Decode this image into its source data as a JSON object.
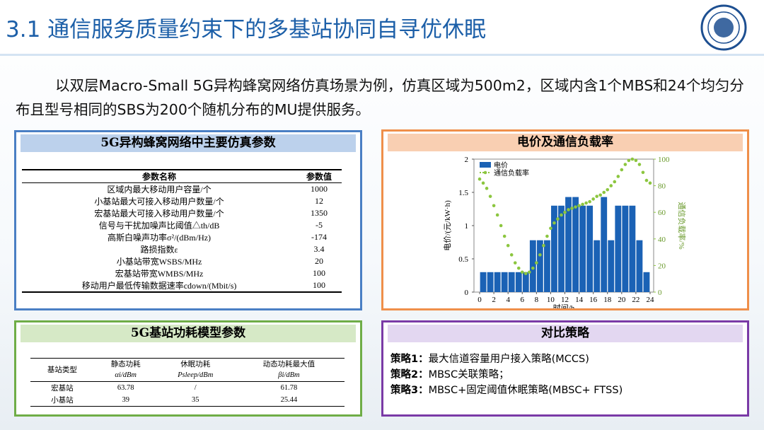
{
  "header": {
    "title": "3.1 通信服务质量约束下的多基站协同自寻优休眠"
  },
  "intro": {
    "text": "以双层Macro-Small 5G异构蜂窝网络仿真场景为例，仿真区域为500m2，区域内含1个MBS和24个均匀分布且型号相同的SBS为200个随机分布的MU提供服务。"
  },
  "params_panel": {
    "title": "5G异构蜂窝网络中主要仿真参数",
    "table": {
      "header": [
        "参数名称",
        "参数值"
      ],
      "rows": [
        [
          "区域内最大移动用户容量/个",
          "1000"
        ],
        [
          "小基站最大可接入移动用户数量/个",
          "12"
        ],
        [
          "宏基站最大可接入移动用户数量/个",
          "1350"
        ],
        [
          "信号与干扰加噪声比阈值△th/dB",
          "-5"
        ],
        [
          "高斯白噪声功率σ²/(dBm/Hz)",
          "-174"
        ],
        [
          "路损指数ε",
          "3.4"
        ],
        [
          "小基站带宽WSBS/MHz",
          "20"
        ],
        [
          "宏基站带宽WMBS/MHz",
          "100"
        ],
        [
          "移动用户最低传输数据速率cdown/(Mbit/s)",
          "100"
        ]
      ]
    }
  },
  "chart_panel": {
    "title": "电价及通信负载率"
  },
  "chart_data": {
    "type": "bar",
    "x_label": "时间/h",
    "y_label": "电价/(元/kW·h)",
    "y2_label": "通信负载率/%",
    "xlim": [
      -0.8,
      24.5
    ],
    "xticks": [
      0,
      2,
      4,
      6,
      8,
      10,
      12,
      14,
      16,
      18,
      20,
      22,
      24
    ],
    "ylim": [
      0,
      2
    ],
    "yticks": [
      0,
      0.5,
      1,
      1.5,
      2
    ],
    "y2lim": [
      0,
      100
    ],
    "y2ticks": [
      0,
      20,
      40,
      60,
      80,
      100
    ],
    "legend": "upper-left",
    "series": [
      {
        "name": "电价",
        "type": "bar",
        "color": "#1b62b5",
        "x": [
          0,
          1,
          2,
          3,
          4,
          5,
          6,
          7,
          8,
          9,
          10,
          11,
          12,
          13,
          14,
          15,
          16,
          17,
          18,
          19,
          20,
          21,
          22,
          23
        ],
        "values": [
          0.3,
          0.3,
          0.3,
          0.3,
          0.3,
          0.3,
          0.3,
          0.78,
          0.78,
          0.78,
          1.3,
          1.3,
          1.43,
          1.43,
          1.3,
          1.3,
          0.78,
          1.43,
          0.78,
          1.3,
          1.3,
          1.3,
          0.78,
          0.3
        ]
      },
      {
        "name": "通信负载率",
        "type": "line",
        "axis": "y2",
        "color": "#8cc63f",
        "x": [
          0,
          0.5,
          1,
          1.5,
          2,
          2.5,
          3,
          3.5,
          4,
          4.5,
          5,
          5.5,
          6,
          6.5,
          7,
          7.5,
          8,
          8.5,
          9,
          9.5,
          10,
          10.5,
          11,
          11.5,
          12,
          12.5,
          13,
          13.5,
          14,
          14.5,
          15,
          15.5,
          16,
          16.5,
          17,
          17.5,
          18,
          18.5,
          19,
          19.5,
          20,
          20.5,
          21,
          21.5,
          22,
          22.5,
          23,
          23.5,
          24
        ],
        "values": [
          85,
          82,
          78,
          72,
          65,
          58,
          50,
          42,
          35,
          28,
          22,
          18,
          15,
          14,
          15,
          18,
          22,
          28,
          35,
          42,
          48,
          52,
          55,
          58,
          60,
          62,
          63,
          64,
          65,
          66,
          67,
          68,
          70,
          72,
          73,
          75,
          77,
          80,
          83,
          87,
          92,
          96,
          99,
          100,
          99,
          96,
          90,
          84,
          82
        ]
      }
    ]
  },
  "power_panel": {
    "title": "5G基站功耗模型参数",
    "table": {
      "header": [
        [
          "基站类型",
          ""
        ],
        [
          "静态功耗",
          "αi/dBm"
        ],
        [
          "休眠功耗",
          "Psleep/dBm"
        ],
        [
          "动态功耗最大值",
          "βi/dBm"
        ]
      ],
      "rows": [
        [
          "宏基站",
          "63.78",
          "/",
          "61.78"
        ],
        [
          "小基站",
          "39",
          "35",
          "25.44"
        ]
      ]
    }
  },
  "strategy_panel": {
    "title": "对比策略",
    "items": [
      {
        "label": "策略1：",
        "text": "最大信道容量用户接入策略(MCCS)"
      },
      {
        "label": "策略2：",
        "text": "MBSC关联策略；"
      },
      {
        "label": "策略3：",
        "text": "MBSC+固定阈值休眠策略(MBSC+ FTSS)"
      }
    ]
  }
}
